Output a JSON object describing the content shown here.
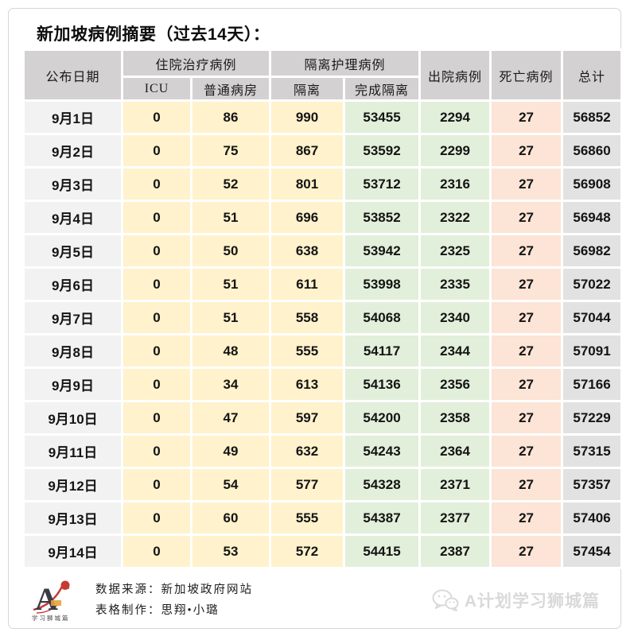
{
  "page": {
    "title": "新加坡病例摘要（过去14天）："
  },
  "table": {
    "header": {
      "date": "公布日期",
      "hospitalized_group": "住院治疗病例",
      "icu": "ICU",
      "general_ward": "普通病房",
      "isolation_group": "隔离护理病例",
      "isolation": "隔离",
      "completed_isolation": "完成隔离",
      "discharged": "出院病例",
      "deaths": "死亡病例",
      "total": "总计"
    },
    "rows": [
      {
        "date": "9月1日",
        "icu": "0",
        "ward": "86",
        "isolation": "990",
        "completed": "53455",
        "discharged": "2294",
        "deaths": "27",
        "total": "56852"
      },
      {
        "date": "9月2日",
        "icu": "0",
        "ward": "75",
        "isolation": "867",
        "completed": "53592",
        "discharged": "2299",
        "deaths": "27",
        "total": "56860"
      },
      {
        "date": "9月3日",
        "icu": "0",
        "ward": "52",
        "isolation": "801",
        "completed": "53712",
        "discharged": "2316",
        "deaths": "27",
        "total": "56908"
      },
      {
        "date": "9月4日",
        "icu": "0",
        "ward": "51",
        "isolation": "696",
        "completed": "53852",
        "discharged": "2322",
        "deaths": "27",
        "total": "56948"
      },
      {
        "date": "9月5日",
        "icu": "0",
        "ward": "50",
        "isolation": "638",
        "completed": "53942",
        "discharged": "2325",
        "deaths": "27",
        "total": "56982"
      },
      {
        "date": "9月6日",
        "icu": "0",
        "ward": "51",
        "isolation": "611",
        "completed": "53998",
        "discharged": "2335",
        "deaths": "27",
        "total": "57022"
      },
      {
        "date": "9月7日",
        "icu": "0",
        "ward": "51",
        "isolation": "558",
        "completed": "54068",
        "discharged": "2340",
        "deaths": "27",
        "total": "57044"
      },
      {
        "date": "9月8日",
        "icu": "0",
        "ward": "48",
        "isolation": "555",
        "completed": "54117",
        "discharged": "2344",
        "deaths": "27",
        "total": "57091"
      },
      {
        "date": "9月9日",
        "icu": "0",
        "ward": "34",
        "isolation": "613",
        "completed": "54136",
        "discharged": "2356",
        "deaths": "27",
        "total": "57166"
      },
      {
        "date": "9月10日",
        "icu": "0",
        "ward": "47",
        "isolation": "597",
        "completed": "54200",
        "discharged": "2358",
        "deaths": "27",
        "total": "57229"
      },
      {
        "date": "9月11日",
        "icu": "0",
        "ward": "49",
        "isolation": "632",
        "completed": "54243",
        "discharged": "2364",
        "deaths": "27",
        "total": "57315"
      },
      {
        "date": "9月12日",
        "icu": "0",
        "ward": "54",
        "isolation": "577",
        "completed": "54328",
        "discharged": "2371",
        "deaths": "27",
        "total": "57357"
      },
      {
        "date": "9月13日",
        "icu": "0",
        "ward": "60",
        "isolation": "555",
        "completed": "54387",
        "discharged": "2377",
        "deaths": "27",
        "total": "57406"
      },
      {
        "date": "9月14日",
        "icu": "0",
        "ward": "53",
        "isolation": "572",
        "completed": "54415",
        "discharged": "2387",
        "deaths": "27",
        "total": "57454"
      }
    ]
  },
  "footer": {
    "source": "数据来源：新加坡政府网站",
    "credit": "表格制作：思翔•小璐",
    "logo_letter": "A",
    "logo_text": "学习狮城篇",
    "watermark": "A计划学习狮城篇"
  },
  "colors": {
    "header_bg": "#d3d1d1",
    "date_col_bg": "#f2f2f2",
    "hospital_cols_bg": "#fff2cc",
    "isolation_done_cols_bg": "#e2efda",
    "deaths_col_bg": "#fce4d6",
    "total_col_bg": "#e2e2e2",
    "frame_border": "#d6d6d6",
    "watermark_gray": "#d9d9d9",
    "logo_red": "#c53b32"
  },
  "chart_data": {
    "type": "table",
    "title": "新加坡病例摘要（过去14天）",
    "columns": [
      "公布日期",
      "住院治疗病例-ICU",
      "住院治疗病例-普通病房",
      "隔离护理病例-隔离",
      "隔离护理病例-完成隔离",
      "出院病例",
      "死亡病例",
      "总计"
    ],
    "rows": [
      [
        "9月1日",
        0,
        86,
        990,
        53455,
        2294,
        27,
        56852
      ],
      [
        "9月2日",
        0,
        75,
        867,
        53592,
        2299,
        27,
        56860
      ],
      [
        "9月3日",
        0,
        52,
        801,
        53712,
        2316,
        27,
        56908
      ],
      [
        "9月4日",
        0,
        51,
        696,
        53852,
        2322,
        27,
        56948
      ],
      [
        "9月5日",
        0,
        50,
        638,
        53942,
        2325,
        27,
        56982
      ],
      [
        "9月6日",
        0,
        51,
        611,
        53998,
        2335,
        27,
        57022
      ],
      [
        "9月7日",
        0,
        51,
        558,
        54068,
        2340,
        27,
        57044
      ],
      [
        "9月8日",
        0,
        48,
        555,
        54117,
        2344,
        27,
        57091
      ],
      [
        "9月9日",
        0,
        34,
        613,
        54136,
        2356,
        27,
        57166
      ],
      [
        "9月10日",
        0,
        47,
        597,
        54200,
        2358,
        27,
        57229
      ],
      [
        "9月11日",
        0,
        49,
        632,
        54243,
        2364,
        27,
        57315
      ],
      [
        "9月12日",
        0,
        54,
        577,
        54328,
        2371,
        27,
        57357
      ],
      [
        "9月13日",
        0,
        60,
        555,
        54387,
        2377,
        27,
        57406
      ],
      [
        "9月14日",
        0,
        53,
        572,
        54415,
        2387,
        27,
        57454
      ]
    ],
    "footnotes": [
      "数据来源：新加坡政府网站",
      "表格制作：思翔•小璐"
    ]
  }
}
